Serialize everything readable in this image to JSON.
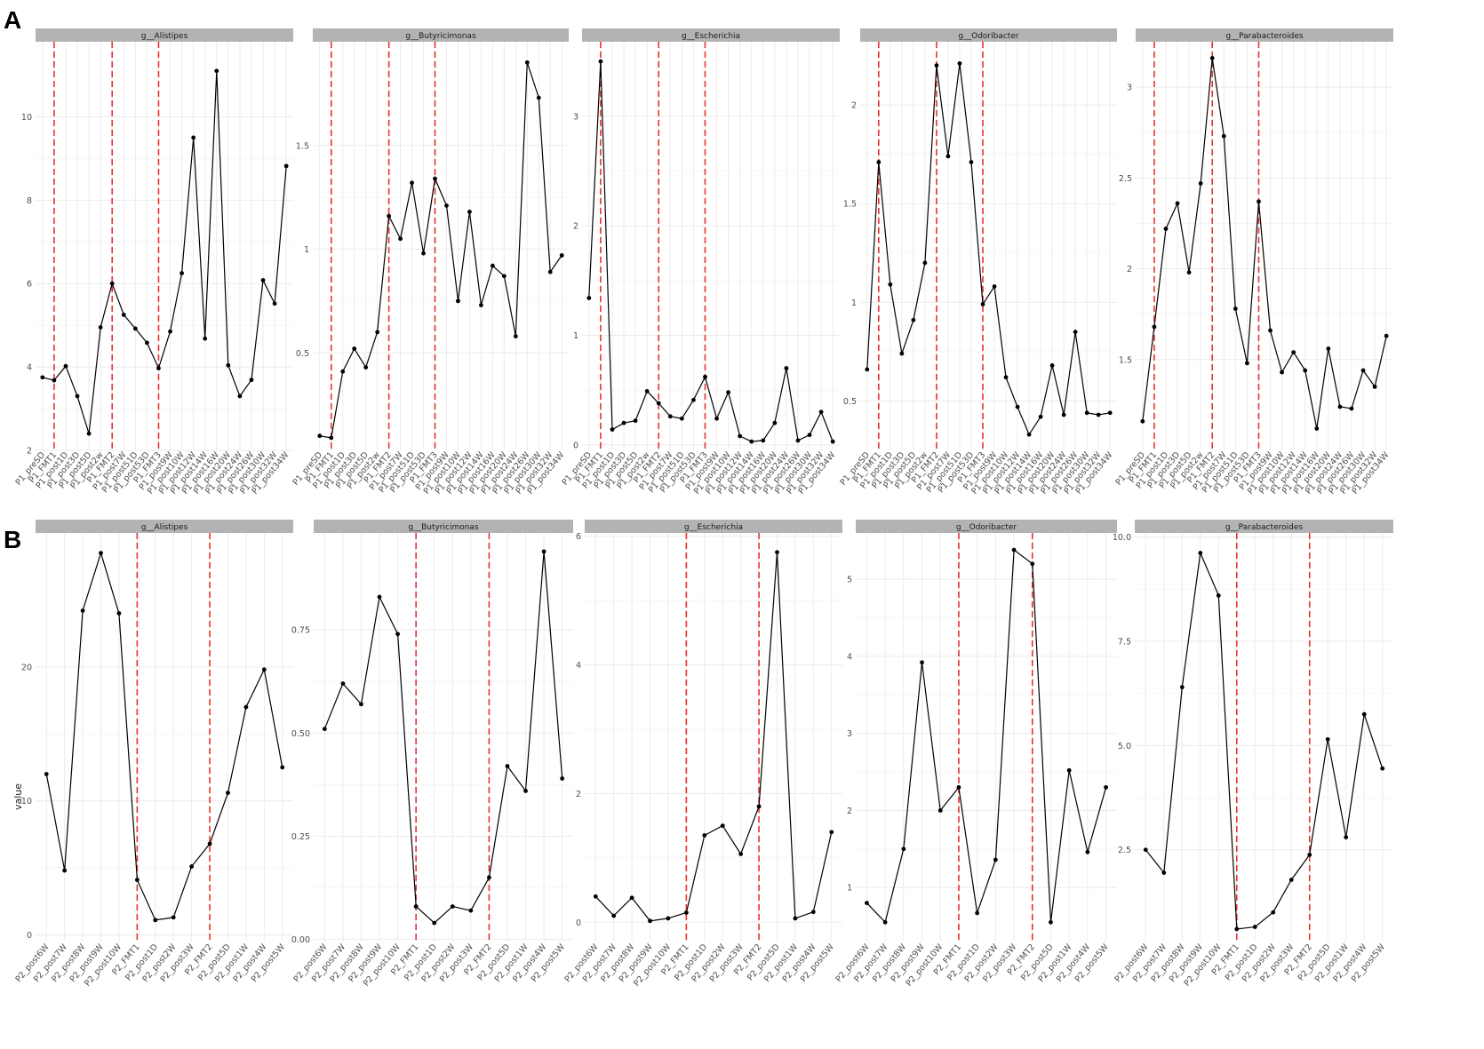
{
  "labels": {
    "panel_a": "A",
    "panel_b": "B",
    "ylabel": "value"
  },
  "colors": {
    "line": "#000000",
    "vline": "#e8312f",
    "strip": "#b3b3b3",
    "grid": "#ebebeb"
  },
  "chart_data": [
    {
      "type": "line",
      "row": "A",
      "title": "g__Alistipes",
      "categories": [
        "P1_preSD",
        "P1_FMT1",
        "P1_post1D",
        "P1_post3D",
        "P1_post5D",
        "P1_post2w",
        "P1_FMT2",
        "P1_post7W",
        "P1_post51D",
        "P1_post53D",
        "P1_FMT3",
        "P1_post9W",
        "P1_post10W",
        "P1_post12W",
        "P1_post14W",
        "P1_post16W",
        "P1_post20W",
        "P1_post24W",
        "P1_post26W",
        "P1_post30W",
        "P1_post32W",
        "P1_post34W"
      ],
      "values": [
        3.75,
        3.68,
        4.02,
        3.3,
        2.4,
        4.95,
        6.0,
        5.25,
        4.92,
        4.58,
        3.97,
        4.85,
        6.25,
        9.5,
        4.68,
        11.1,
        4.04,
        3.3,
        3.69,
        6.08,
        5.52,
        8.82
      ],
      "ylim": [
        2,
        11.8
      ],
      "yticks": [
        2,
        4,
        6,
        8,
        10
      ],
      "vlines": [
        1,
        6,
        10
      ]
    },
    {
      "type": "line",
      "row": "A",
      "title": "g__Butyricimonas",
      "categories": [
        "P1_preSD",
        "P1_FMT1",
        "P1_post1D",
        "P1_post3D",
        "P1_post5D",
        "P1_post2w",
        "P1_FMT2",
        "P1_post7W",
        "P1_post51D",
        "P1_post53D",
        "P1_FMT3",
        "P1_post9W",
        "P1_post10W",
        "P1_post12W",
        "P1_post14W",
        "P1_post16W",
        "P1_post20W",
        "P1_post24W",
        "P1_post26W",
        "P1_post30W",
        "P1_post32W",
        "P1_post34W"
      ],
      "values": [
        0.1,
        0.09,
        0.41,
        0.52,
        0.43,
        0.6,
        1.16,
        1.05,
        1.32,
        0.98,
        1.34,
        1.21,
        0.75,
        1.18,
        0.73,
        0.92,
        0.87,
        0.58,
        1.9,
        1.73,
        0.89,
        0.97
      ],
      "ylim": [
        0.03,
        2.0
      ],
      "yticks": [
        0.5,
        1.0,
        1.5
      ],
      "vlines": [
        1,
        6,
        10
      ]
    },
    {
      "type": "line",
      "row": "A",
      "title": "g__Escherichia",
      "categories": [
        "P1_preSD",
        "P1_FMT1",
        "P1_post1D",
        "P1_post3D",
        "P1_post5D",
        "P1_post2w",
        "P1_FMT2",
        "P1_post7W",
        "P1_post51D",
        "P1_post53D",
        "P1_FMT3",
        "P1_post9W",
        "P1_post10W",
        "P1_post12W",
        "P1_post14W",
        "P1_post16W",
        "P1_post20W",
        "P1_post24W",
        "P1_post26W",
        "P1_post30W",
        "P1_post32W",
        "P1_post34W"
      ],
      "values": [
        1.34,
        3.5,
        0.14,
        0.2,
        0.22,
        0.49,
        0.38,
        0.26,
        0.24,
        0.41,
        0.62,
        0.24,
        0.48,
        0.08,
        0.03,
        0.04,
        0.2,
        0.7,
        0.04,
        0.09,
        0.3,
        0.03
      ],
      "ylim": [
        -0.05,
        3.68
      ],
      "yticks": [
        0,
        1,
        2,
        3
      ],
      "vlines": [
        1,
        6,
        10
      ]
    },
    {
      "type": "line",
      "row": "A",
      "title": "g__Odoribacter",
      "categories": [
        "P1_preSD",
        "P1_FMT1",
        "P1_post1D",
        "P1_post3D",
        "P1_post5D",
        "P1_post2w",
        "P1_FMT2",
        "P1_post7W",
        "P1_post51D",
        "P1_post53D",
        "P1_FMT3",
        "P1_post9W",
        "P1_post10W",
        "P1_post12W",
        "P1_post14W",
        "P1_post16W",
        "P1_post20W",
        "P1_post24W",
        "P1_post26W",
        "P1_post30W",
        "P1_post32W",
        "P1_post34W"
      ],
      "values": [
        0.66,
        1.71,
        1.09,
        0.74,
        0.91,
        1.2,
        2.2,
        1.74,
        2.21,
        1.71,
        0.99,
        1.08,
        0.62,
        0.47,
        0.33,
        0.42,
        0.68,
        0.43,
        0.85,
        0.44,
        0.43,
        0.44
      ],
      "ylim": [
        0.25,
        2.32
      ],
      "yticks": [
        0.5,
        1.0,
        1.5,
        2.0
      ],
      "vlines": [
        1,
        6,
        10
      ]
    },
    {
      "type": "line",
      "row": "A",
      "title": "g__Parabacteroides",
      "categories": [
        "P1_preSD",
        "P1_FMT1",
        "P1_post1D",
        "P1_post3D",
        "P1_post5D",
        "P1_post2w",
        "P1_FMT2",
        "P1_post7W",
        "P1_post51D",
        "P1_post53D",
        "P1_FMT3",
        "P1_post9W",
        "P1_post10W",
        "P1_post12W",
        "P1_post14W",
        "P1_post16W",
        "P1_post20W",
        "P1_post24W",
        "P1_post26W",
        "P1_post30W",
        "P1_post32W",
        "P1_post34W"
      ],
      "values": [
        1.16,
        1.68,
        2.22,
        2.36,
        1.98,
        2.47,
        3.16,
        2.73,
        1.78,
        1.48,
        2.37,
        1.66,
        1.43,
        1.54,
        1.44,
        1.12,
        1.56,
        1.24,
        1.23,
        1.44,
        1.35,
        1.63
      ],
      "ylim": [
        1.0,
        3.25
      ],
      "yticks": [
        1.5,
        2.0,
        2.5,
        3.0
      ],
      "vlines": [
        1,
        6,
        10
      ]
    },
    {
      "type": "line",
      "row": "B",
      "title": "g__Alistipes",
      "categories": [
        "P2_post6W",
        "P2_post7W",
        "P2_post8W",
        "P2_post9W",
        "P2_post10W",
        "P2_FMT1",
        "P2_post1D",
        "P2_post2W",
        "P2_post3W",
        "P2_FMT2",
        "P2_post5D",
        "P2_post1W",
        "P2_post4W",
        "P2_post5W"
      ],
      "values": [
        12.0,
        4.8,
        24.2,
        28.5,
        24.0,
        4.1,
        1.1,
        1.3,
        5.1,
        6.8,
        10.6,
        17.0,
        19.8,
        12.5
      ],
      "ylim": [
        -0.5,
        30.0
      ],
      "yticks": [
        0,
        10,
        20
      ],
      "vlines": [
        5,
        9
      ]
    },
    {
      "type": "line",
      "row": "B",
      "title": "g__Butyricimonas",
      "categories": [
        "P2_post6W",
        "P2_post7W",
        "P2_post8W",
        "P2_post9W",
        "P2_post10W",
        "P2_FMT1",
        "P2_post1D",
        "P2_post2W",
        "P2_post3W",
        "P2_FMT2",
        "P2_post5D",
        "P2_post1W",
        "P2_post4W",
        "P2_post5W"
      ],
      "values": [
        0.51,
        0.62,
        0.57,
        0.83,
        0.74,
        0.08,
        0.04,
        0.08,
        0.07,
        0.15,
        0.42,
        0.36,
        0.94,
        0.39
      ],
      "ylim": [
        -0.005,
        0.985
      ],
      "yticks": [
        0.0,
        0.25,
        0.5,
        0.75
      ],
      "ytick_labels": [
        "0.00",
        "0.25",
        "0.50",
        "0.75"
      ],
      "vlines": [
        5,
        9
      ]
    },
    {
      "type": "line",
      "row": "B",
      "title": "g__Escherichia",
      "categories": [
        "P2_post6W",
        "P2_post7W",
        "P2_post8W",
        "P2_post9W",
        "P2_post10W",
        "P2_FMT1",
        "P2_post1D",
        "P2_post2W",
        "P2_post3W",
        "P2_FMT2",
        "P2_post5D",
        "P2_post1W",
        "P2_post4W",
        "P2_post5W"
      ],
      "values": [
        0.4,
        0.1,
        0.38,
        0.02,
        0.06,
        0.15,
        1.35,
        1.5,
        1.06,
        1.8,
        5.75,
        0.06,
        0.16,
        1.4
      ],
      "ylim": [
        -0.3,
        6.05
      ],
      "yticks": [
        0,
        2,
        4,
        6
      ],
      "vlines": [
        5,
        9
      ]
    },
    {
      "type": "line",
      "row": "B",
      "title": "g__Odoribacter",
      "categories": [
        "P2_post6W",
        "P2_post7W",
        "P2_post8W",
        "P2_post9W",
        "P2_post10W",
        "P2_FMT1",
        "P2_post1D",
        "P2_post2W",
        "P2_post3W",
        "P2_FMT2",
        "P2_post5D",
        "P2_post1W",
        "P2_post4W",
        "P2_post5W"
      ],
      "values": [
        0.8,
        0.55,
        1.5,
        3.92,
        2.0,
        2.3,
        0.67,
        1.36,
        5.38,
        5.2,
        0.55,
        2.52,
        1.46,
        2.3
      ],
      "ylim": [
        0.3,
        5.6
      ],
      "yticks": [
        1,
        2,
        3,
        4,
        5
      ],
      "vlines": [
        5,
        9
      ]
    },
    {
      "type": "line",
      "row": "B",
      "title": "g__Parabacteroides",
      "categories": [
        "P2_post6W",
        "P2_post7W",
        "P2_post8W",
        "P2_post9W",
        "P2_post10W",
        "P2_FMT1",
        "P2_post1D",
        "P2_post2W",
        "P2_post3W",
        "P2_FMT2",
        "P2_post5D",
        "P2_post1W",
        "P2_post4W",
        "P2_post5W"
      ],
      "values": [
        2.5,
        1.95,
        6.4,
        9.62,
        8.6,
        0.6,
        0.65,
        1.0,
        1.78,
        2.38,
        5.15,
        2.8,
        5.75,
        4.45
      ],
      "ylim": [
        0.3,
        10.1
      ],
      "yticks": [
        2.5,
        5.0,
        7.5,
        10.0
      ],
      "ytick_labels": [
        "2.5",
        "5.0",
        "7.5",
        "10.0"
      ],
      "vlines": [
        5,
        9
      ]
    }
  ]
}
